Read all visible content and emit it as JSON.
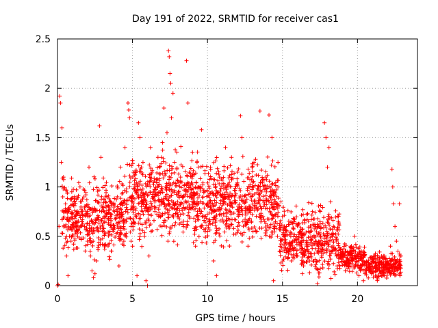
{
  "chart_data": {
    "type": "scatter",
    "title": "Day 191 of 2022, SRMTID for receiver cas1",
    "xlabel": "GPS time / hours",
    "ylabel": "SRMTID / TECUs",
    "xlim": [
      0,
      24
    ],
    "ylim": [
      0,
      2.5
    ],
    "xticks": [
      0,
      5,
      10,
      15,
      20
    ],
    "yticks": [
      0,
      0.5,
      1,
      1.5,
      2,
      2.5
    ],
    "xtick_labels": [
      "0",
      "5",
      "10",
      "15",
      "20"
    ],
    "ytick_labels": [
      "0",
      "0.5",
      "1",
      "1.5",
      "2",
      "2.5"
    ],
    "grid": true,
    "marker": "+",
    "color": "#ff0000",
    "series": [
      {
        "name": "cas1",
        "points": [
          [
            0.0,
            0.0
          ],
          [
            0.05,
            0.01
          ],
          [
            0.1,
            0.6
          ],
          [
            0.15,
            1.92
          ],
          [
            0.2,
            1.85
          ],
          [
            0.25,
            1.25
          ],
          [
            0.3,
            1.6
          ],
          [
            0.35,
            0.9
          ],
          [
            0.4,
            1.1
          ],
          [
            0.5,
            0.75
          ],
          [
            0.6,
            0.3
          ],
          [
            0.7,
            0.1
          ],
          [
            0.8,
            0.5
          ],
          [
            0.9,
            0.45
          ],
          [
            1.0,
            0.7
          ],
          [
            1.1,
            0.85
          ],
          [
            1.2,
            0.6
          ],
          [
            1.3,
            0.55
          ],
          [
            1.5,
            1.0
          ],
          [
            1.6,
            0.75
          ],
          [
            1.8,
            0.6
          ],
          [
            2.0,
            0.45
          ],
          [
            2.1,
            1.2
          ],
          [
            2.2,
            0.3
          ],
          [
            2.3,
            0.15
          ],
          [
            2.4,
            0.08
          ],
          [
            2.5,
            0.12
          ],
          [
            2.6,
            0.25
          ],
          [
            2.8,
            1.62
          ],
          [
            2.9,
            1.3
          ],
          [
            3.0,
            0.55
          ],
          [
            3.2,
            0.7
          ],
          [
            3.3,
            0.9
          ],
          [
            3.5,
            0.55
          ],
          [
            3.6,
            0.35
          ],
          [
            3.8,
            0.75
          ],
          [
            4.0,
            0.8
          ],
          [
            4.1,
            0.2
          ],
          [
            4.2,
            1.2
          ],
          [
            4.3,
            0.65
          ],
          [
            4.5,
            1.4
          ],
          [
            4.6,
            0.95
          ],
          [
            4.7,
            1.85
          ],
          [
            4.75,
            1.78
          ],
          [
            4.8,
            1.7
          ],
          [
            4.9,
            0.6
          ],
          [
            5.0,
            0.4
          ],
          [
            5.2,
            1.0
          ],
          [
            5.3,
            0.1
          ],
          [
            5.4,
            1.65
          ],
          [
            5.5,
            1.5
          ],
          [
            5.6,
            0.85
          ],
          [
            5.7,
            1.25
          ],
          [
            5.8,
            0.5
          ],
          [
            5.9,
            0.05
          ],
          [
            6.0,
            0.0
          ],
          [
            6.1,
            0.3
          ],
          [
            6.2,
            1.4
          ],
          [
            6.3,
            1.15
          ],
          [
            6.5,
            0.75
          ],
          [
            6.7,
            1.3
          ],
          [
            6.8,
            1.2
          ],
          [
            7.0,
            1.45
          ],
          [
            7.1,
            1.8
          ],
          [
            7.2,
            1.0
          ],
          [
            7.3,
            1.55
          ],
          [
            7.4,
            2.38
          ],
          [
            7.45,
            2.32
          ],
          [
            7.5,
            2.15
          ],
          [
            7.55,
            2.05
          ],
          [
            7.6,
            1.7
          ],
          [
            7.7,
            1.95
          ],
          [
            7.8,
            1.25
          ],
          [
            8.0,
            0.85
          ],
          [
            8.2,
            1.1
          ],
          [
            8.4,
            0.6
          ],
          [
            8.6,
            2.28
          ],
          [
            8.7,
            1.85
          ],
          [
            8.8,
            0.9
          ],
          [
            9.0,
            1.35
          ],
          [
            9.2,
            0.4
          ],
          [
            9.4,
            1.0
          ],
          [
            9.6,
            1.58
          ],
          [
            9.8,
            0.7
          ],
          [
            10.0,
            0.55
          ],
          [
            10.2,
            1.2
          ],
          [
            10.4,
            0.25
          ],
          [
            10.6,
            0.1
          ],
          [
            10.8,
            1.1
          ],
          [
            11.0,
            0.85
          ],
          [
            11.2,
            1.4
          ],
          [
            11.4,
            0.6
          ],
          [
            11.6,
            1.3
          ],
          [
            11.8,
            0.9
          ],
          [
            12.0,
            1.15
          ],
          [
            12.2,
            1.72
          ],
          [
            12.3,
            1.5
          ],
          [
            12.5,
            0.65
          ],
          [
            12.7,
            0.4
          ],
          [
            12.9,
            0.9
          ],
          [
            13.1,
            1.25
          ],
          [
            13.3,
            0.55
          ],
          [
            13.5,
            1.77
          ],
          [
            13.7,
            0.7
          ],
          [
            13.9,
            1.1
          ],
          [
            14.1,
            1.73
          ],
          [
            14.2,
            0.95
          ],
          [
            14.3,
            1.5
          ],
          [
            14.4,
            0.05
          ],
          [
            14.5,
            0.6
          ],
          [
            14.7,
            1.25
          ],
          [
            14.9,
            0.85
          ],
          [
            15.0,
            0.7
          ],
          [
            15.2,
            0.5
          ],
          [
            15.4,
            0.35
          ],
          [
            15.6,
            0.25
          ],
          [
            15.8,
            0.45
          ],
          [
            16.0,
            0.3
          ],
          [
            16.2,
            0.55
          ],
          [
            16.4,
            0.2
          ],
          [
            16.6,
            0.4
          ],
          [
            16.8,
            0.25
          ],
          [
            17.0,
            0.75
          ],
          [
            17.2,
            0.45
          ],
          [
            17.4,
            0.6
          ],
          [
            17.6,
            0.3
          ],
          [
            17.8,
            1.65
          ],
          [
            17.9,
            1.5
          ],
          [
            18.0,
            1.2
          ],
          [
            18.1,
            1.4
          ],
          [
            18.2,
            0.85
          ],
          [
            18.4,
            0.6
          ],
          [
            18.6,
            0.3
          ],
          [
            18.8,
            0.2
          ],
          [
            19.0,
            0.35
          ],
          [
            19.2,
            0.15
          ],
          [
            19.4,
            0.25
          ],
          [
            19.6,
            0.4
          ],
          [
            19.8,
            0.5
          ],
          [
            19.9,
            0.3
          ],
          [
            20.0,
            0.2
          ],
          [
            20.1,
            0.1
          ],
          [
            20.2,
            0.15
          ],
          [
            20.4,
            0.05
          ],
          [
            20.5,
            0.12
          ],
          [
            20.6,
            0.2
          ],
          [
            20.8,
            0.15
          ],
          [
            21.0,
            0.25
          ],
          [
            21.2,
            0.3
          ],
          [
            21.4,
            0.18
          ],
          [
            21.6,
            0.22
          ],
          [
            21.8,
            0.3
          ],
          [
            22.0,
            0.25
          ],
          [
            22.2,
            0.4
          ],
          [
            22.3,
            1.18
          ],
          [
            22.35,
            1.0
          ],
          [
            22.4,
            0.83
          ],
          [
            22.5,
            0.6
          ],
          [
            22.6,
            0.45
          ],
          [
            22.7,
            0.35
          ],
          [
            22.8,
            0.83
          ],
          [
            22.9,
            0.3
          ]
        ]
      }
    ],
    "density": [
      {
        "from": 0.3,
        "to": 4.6,
        "base": 0.7,
        "spread": 0.3
      },
      {
        "from": 4.6,
        "to": 9.0,
        "base": 0.9,
        "spread": 0.35
      },
      {
        "from": 9.0,
        "to": 14.8,
        "base": 0.85,
        "spread": 0.35
      },
      {
        "from": 14.8,
        "to": 16.3,
        "base": 0.45,
        "spread": 0.25
      },
      {
        "from": 16.3,
        "to": 18.8,
        "base": 0.45,
        "spread": 0.3
      },
      {
        "from": 18.8,
        "to": 20.5,
        "base": 0.28,
        "spread": 0.12
      },
      {
        "from": 20.5,
        "to": 22.9,
        "base": 0.2,
        "spread": 0.1
      }
    ]
  }
}
